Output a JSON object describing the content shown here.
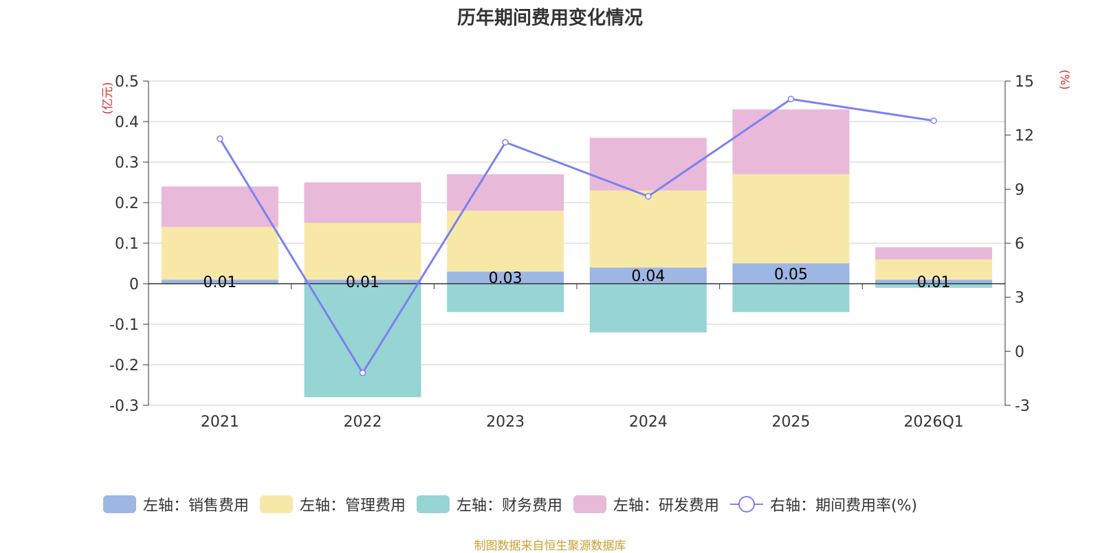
{
  "chart_data": {
    "type": "bar",
    "title": "历年期间费用变化情况",
    "categories": [
      "2021",
      "2022",
      "2023",
      "2024",
      "2025",
      "2026Q1"
    ],
    "left_axis": {
      "unit_label": "(亿元)",
      "ylim": [
        -0.3,
        0.5
      ],
      "ticks": [
        "0.5",
        "0.4",
        "0.3",
        "0.2",
        "0.1",
        "0",
        "-0.1",
        "-0.2",
        "-0.3"
      ],
      "tick_values": [
        0.5,
        0.4,
        0.3,
        0.2,
        0.1,
        0,
        -0.1,
        -0.2,
        -0.3
      ]
    },
    "right_axis": {
      "unit_label": "(%)",
      "ylim": [
        -3,
        15
      ],
      "ticks": [
        "15",
        "12",
        "9",
        "6",
        "3",
        "0",
        "-3"
      ],
      "tick_values": [
        15,
        12,
        9,
        6,
        3,
        0,
        -3
      ]
    },
    "series": [
      {
        "name": "左轴：销售费用",
        "axis": "left",
        "color": "#9db6e3",
        "values": [
          0.01,
          0.01,
          0.03,
          0.04,
          0.05,
          0.01
        ],
        "labels": [
          "0.01",
          "0.01",
          "0.03",
          "0.04",
          "0.05",
          "0.01"
        ]
      },
      {
        "name": "左轴：管理费用",
        "axis": "left",
        "color": "#f8e8a8",
        "values": [
          0.13,
          0.14,
          0.15,
          0.19,
          0.22,
          0.05
        ]
      },
      {
        "name": "左轴：财务费用",
        "axis": "left",
        "color": "#97d4d4",
        "values": [
          0,
          -0.28,
          -0.07,
          -0.12,
          -0.07,
          -0.01
        ]
      },
      {
        "name": "左轴：研发费用",
        "axis": "left",
        "color": "#e8b9d9",
        "values": [
          0.1,
          0.1,
          0.09,
          0.13,
          0.16,
          0.03
        ]
      },
      {
        "name": "右轴：期间费用率(%)",
        "axis": "right",
        "type": "line",
        "color": "#7b80f0",
        "values": [
          11.8,
          -1.2,
          11.6,
          8.6,
          14.0,
          12.8
        ]
      }
    ]
  },
  "source": "制图数据来自恒生聚源数据库"
}
